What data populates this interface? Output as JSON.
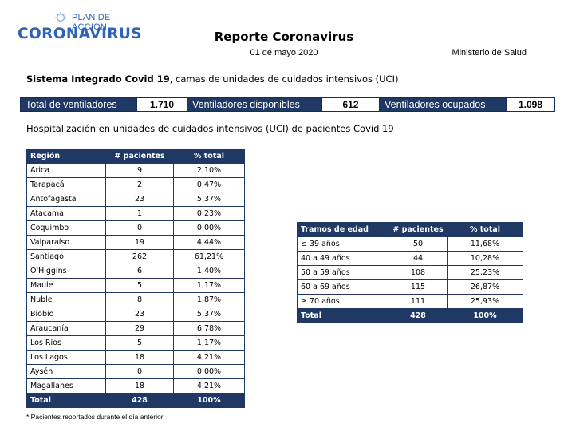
{
  "logo": {
    "top_text": "PLAN DE ACCIÓN",
    "main_text": "CORONAVIRUS"
  },
  "header": {
    "title": "Reporte Coronavirus",
    "date": "01 de mayo 2020",
    "ministry": "Ministerio de Salud"
  },
  "system": {
    "bold": "Sistema Integrado Covid 19",
    "rest": ", camas de unidades de cuidados intensivos (UCI)"
  },
  "ventilators": {
    "total_label": "Total de ventiladores",
    "total_value": "1.710",
    "available_label": "Ventiladores disponibles",
    "available_value": "612",
    "occupied_label": "Ventiladores ocupados",
    "occupied_value": "1.098"
  },
  "hospitalization_title": "Hospitalización en unidades de cuidados intensivos (UCI) de pacientes Covid 19",
  "region_table": {
    "headers": [
      "Región",
      "# pacientes",
      "% total"
    ],
    "rows": [
      [
        "Arica",
        "9",
        "2,10%"
      ],
      [
        "Tarapacá",
        "2",
        "0,47%"
      ],
      [
        "Antofagasta",
        "23",
        "5,37%"
      ],
      [
        "Atacama",
        "1",
        "0,23%"
      ],
      [
        "Coquimbo",
        "0",
        "0,00%"
      ],
      [
        "Valparaíso",
        "19",
        "4,44%"
      ],
      [
        "Santiago",
        "262",
        "61,21%"
      ],
      [
        "O'Higgins",
        "6",
        "1,40%"
      ],
      [
        "Maule",
        "5",
        "1,17%"
      ],
      [
        "Ñuble",
        "8",
        "1,87%"
      ],
      [
        "Biobío",
        "23",
        "5,37%"
      ],
      [
        "Araucanía",
        "29",
        "6,78%"
      ],
      [
        "Los Ríos",
        "5",
        "1,17%"
      ],
      [
        "Los Lagos",
        "18",
        "4,21%"
      ],
      [
        "Aysén",
        "0",
        "0,00%"
      ],
      [
        "Magallanes",
        "18",
        "4,21%"
      ]
    ],
    "total": [
      "Total",
      "428",
      "100%"
    ]
  },
  "age_table": {
    "headers": [
      "Tramos de edad",
      "# pacientes",
      "% total"
    ],
    "rows": [
      [
        "≤ 39 años",
        "50",
        "11,68%"
      ],
      [
        "40 a 49 años",
        "44",
        "10,28%"
      ],
      [
        "50 a 59 años",
        "108",
        "25,23%"
      ],
      [
        "60 a 69 años",
        "115",
        "26,87%"
      ],
      [
        "≥ 70 años",
        "111",
        "25,93%"
      ]
    ],
    "total": [
      "Total",
      "428",
      "100%"
    ]
  },
  "footnote": "* Pacientes reportados durante el día anterior"
}
